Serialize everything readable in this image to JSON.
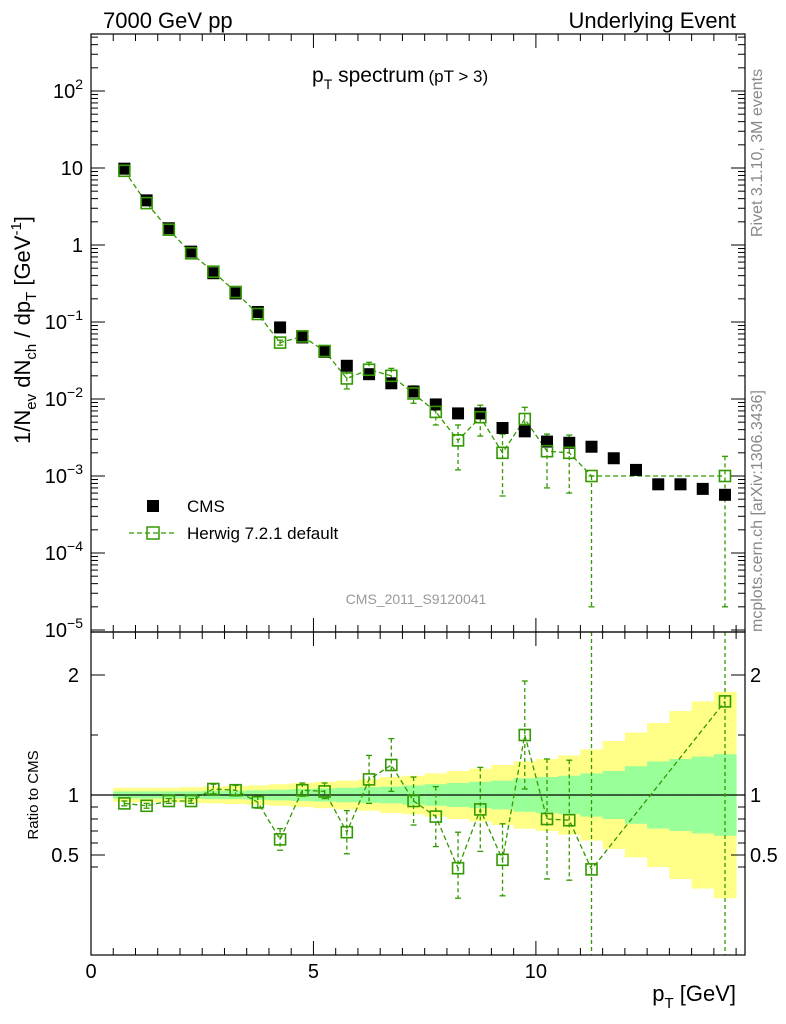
{
  "header": {
    "left": "7000 GeV pp",
    "right": "Underlying Event"
  },
  "side_labels": {
    "rivet": "Rivet 3.1.10,  3M events",
    "mcplots": "mcplots.cern.ch [arXiv:1306.3436]"
  },
  "chart_data": [
    {
      "type": "scatter",
      "title": "pT spectrum (pT > 3)",
      "title_main": "p",
      "title_sub": "T",
      "title_rest": " spectrum",
      "title_small": "(pT >  3)",
      "ylabel": "1/N_ev dN_ch / dp_T [GeV^-1]",
      "xlabel": "p_T [GeV]",
      "watermark": "CMS_2011_S9120041",
      "yscale": "log",
      "xlim": [
        0,
        14.7
      ],
      "ylim": [
        8e-06,
        600
      ],
      "y_tick_labels": [
        "10^-5",
        "10^-4",
        "10^-3",
        "10^-2",
        "10^-1",
        "1",
        "10",
        "10^2"
      ],
      "legend": {
        "placement": "bottom-left",
        "entries": [
          "CMS",
          "Herwig 7.2.1 default"
        ]
      },
      "x": [
        0.75,
        1.25,
        1.75,
        2.25,
        2.75,
        3.25,
        3.75,
        4.25,
        4.75,
        5.25,
        5.75,
        6.25,
        6.75,
        7.25,
        7.75,
        8.25,
        8.75,
        9.25,
        9.75,
        10.25,
        10.75,
        11.25,
        11.75,
        12.25,
        12.75,
        13.25,
        13.75,
        14.25
      ],
      "series": [
        {
          "name": "CMS",
          "color": "#000000",
          "y": [
            9.8,
            3.8,
            1.65,
            0.82,
            0.43,
            0.235,
            0.135,
            0.085,
            0.063,
            0.041,
            0.027,
            0.021,
            0.016,
            0.0125,
            0.0085,
            0.0065,
            0.0065,
            0.0042,
            0.0038,
            0.0028,
            0.0027,
            0.0024,
            0.0017,
            0.0012,
            0.00078,
            0.00078,
            0.00068,
            0.00057
          ]
        },
        {
          "name": "Herwig 7.2.1 default",
          "color": "#339900",
          "x": [
            0.75,
            1.25,
            1.75,
            2.25,
            2.75,
            3.25,
            3.75,
            4.25,
            4.75,
            5.25,
            5.75,
            6.25,
            6.75,
            7.25,
            7.75,
            8.25,
            8.75,
            9.25,
            9.75,
            10.25,
            10.75,
            11.25,
            14.25
          ],
          "y": [
            9.2,
            3.5,
            1.58,
            0.78,
            0.45,
            0.245,
            0.127,
            0.054,
            0.065,
            0.042,
            0.0185,
            0.024,
            0.02,
            0.0118,
            0.0068,
            0.0029,
            0.0058,
            0.002,
            0.0055,
            0.0021,
            0.002,
            0.001,
            0.001
          ],
          "yerr_low": [
            0.3,
            0.1,
            0.05,
            0.03,
            0.02,
            0.01,
            0.008,
            0.004,
            0.004,
            0.003,
            0.005,
            0.006,
            0.005,
            0.003,
            0.0022,
            0.0017,
            0.0025,
            0.00145,
            0.0022,
            0.0014,
            0.0014,
            0.00098,
            0.00098
          ],
          "yerr_high": [
            0.3,
            0.1,
            0.05,
            0.03,
            0.02,
            0.01,
            0.008,
            0.004,
            0.004,
            0.003,
            0.005,
            0.006,
            0.005,
            0.003,
            0.0022,
            0.0017,
            0.0025,
            0.0015,
            0.0023,
            0.0014,
            0.0014,
            0.0,
            0.0008
          ]
        }
      ]
    },
    {
      "type": "scatter",
      "ylabel": "Ratio to CMS",
      "xlabel": "p_T [GeV]",
      "xlim": [
        0,
        14.7
      ],
      "ylim": [
        0.35,
        2.35
      ],
      "x_ticks": [
        0,
        5,
        10
      ],
      "y_ticks": [
        0.5,
        1,
        2
      ],
      "reference_line": 1,
      "bands": {
        "edges": [
          0.5,
          1.0,
          1.5,
          2.0,
          2.5,
          3.0,
          3.5,
          4.0,
          4.5,
          5.0,
          5.5,
          6.0,
          6.5,
          7.0,
          7.5,
          8.0,
          8.5,
          9.0,
          9.5,
          10.0,
          10.5,
          11.0,
          11.5,
          12.0,
          12.5,
          13.0,
          13.5,
          14.0,
          14.5
        ],
        "green_half_width": [
          0.03,
          0.03,
          0.03,
          0.03,
          0.035,
          0.035,
          0.04,
          0.045,
          0.05,
          0.055,
          0.06,
          0.065,
          0.07,
          0.08,
          0.09,
          0.1,
          0.11,
          0.12,
          0.14,
          0.15,
          0.16,
          0.18,
          0.2,
          0.24,
          0.28,
          0.3,
          0.32,
          0.34
        ],
        "yellow_half_width": [
          0.06,
          0.06,
          0.06,
          0.065,
          0.07,
          0.075,
          0.08,
          0.09,
          0.1,
          0.11,
          0.12,
          0.13,
          0.15,
          0.16,
          0.18,
          0.2,
          0.22,
          0.25,
          0.28,
          0.3,
          0.33,
          0.38,
          0.45,
          0.52,
          0.6,
          0.7,
          0.78,
          0.86
        ],
        "colors": {
          "inner": "#99ff99",
          "outer": "#ffff88"
        }
      },
      "series": [
        {
          "name": "Herwig 7.2.1 default",
          "color": "#339900",
          "x": [
            0.75,
            1.25,
            1.75,
            2.25,
            2.75,
            3.25,
            3.75,
            4.25,
            4.75,
            5.25,
            5.75,
            6.25,
            6.75,
            7.25,
            7.75,
            8.25,
            8.75,
            9.25,
            9.75,
            10.25,
            10.75,
            11.25,
            14.25
          ],
          "y": [
            0.93,
            0.91,
            0.95,
            0.95,
            1.05,
            1.04,
            0.94,
            0.63,
            1.04,
            1.03,
            0.69,
            1.13,
            1.25,
            0.95,
            0.82,
            0.39,
            0.88,
            0.46,
            1.5,
            0.8,
            0.79,
            0.38,
            1.78
          ],
          "yerr_low": [
            0.02,
            0.02,
            0.02,
            0.02,
            0.04,
            0.04,
            0.05,
            0.09,
            0.05,
            0.06,
            0.18,
            0.2,
            0.22,
            0.2,
            0.25,
            0.25,
            0.35,
            0.3,
            0.45,
            0.5,
            0.5,
            0.0,
            0.0
          ],
          "yerr_high": [
            0.02,
            0.02,
            0.02,
            0.02,
            0.04,
            0.04,
            0.05,
            0.09,
            0.06,
            0.07,
            0.18,
            0.2,
            0.22,
            0.2,
            0.25,
            0.3,
            0.35,
            0.3,
            0.45,
            0.5,
            0.5,
            0.0,
            0.0
          ]
        }
      ]
    }
  ]
}
